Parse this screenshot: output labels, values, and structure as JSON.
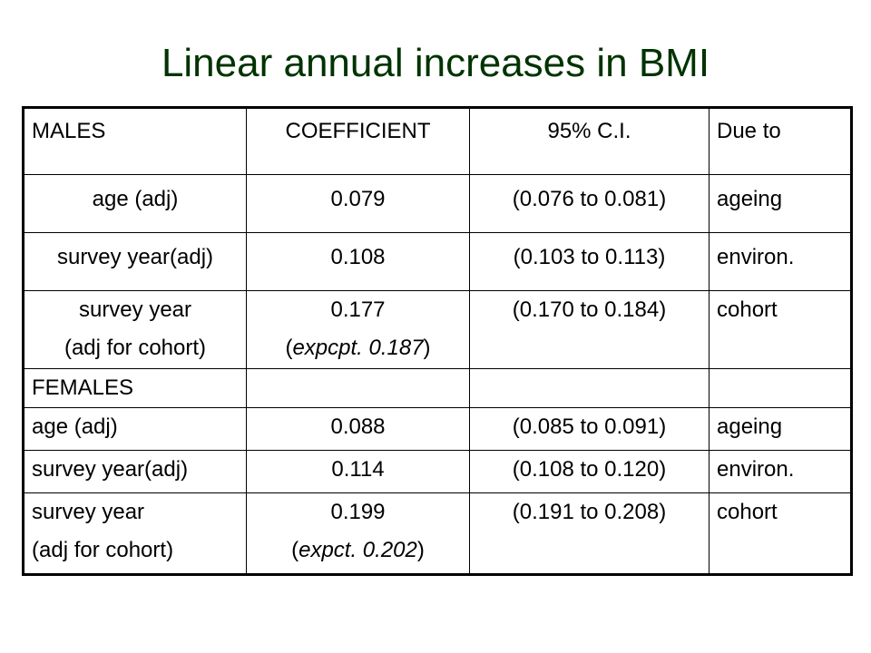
{
  "title": "Linear annual increases in BMI",
  "header": {
    "col1": "MALES",
    "col2": "COEFFICIENT",
    "col3": "95% C.I.",
    "col4": "Due to"
  },
  "males": [
    {
      "label": "age (adj)",
      "coef": "0.079",
      "ci": "(0.076 to 0.081)",
      "due": "ageing"
    },
    {
      "label": "survey year(adj)",
      "coef": "0.108",
      "ci": "(0.103 to 0.113)",
      "due": "environ."
    },
    {
      "label_line1": "survey year",
      "label_line2": "(adj for cohort)",
      "coef": "0.177",
      "expct_prefix": "(",
      "expct": "expcpt. 0.187",
      "expct_suffix": ")",
      "ci": "(0.170 to 0.184)",
      "due": "cohort"
    }
  ],
  "females_label": "FEMALES",
  "females": [
    {
      "label": "age (adj)",
      "coef": "0.088",
      "ci": "(0.085 to 0.091)",
      "due": "ageing"
    },
    {
      "label": "survey year(adj)",
      "coef": "0.114",
      "ci": "(0.108 to 0.120)",
      "due": "environ."
    },
    {
      "label_line1": "survey year",
      "label_line2": "(adj for cohort)",
      "coef": "0.199",
      "expct_prefix": "(",
      "expct": "expct. 0.202",
      "expct_suffix": ")",
      "ci": "(0.191 to 0.208)",
      "due": "cohort"
    }
  ],
  "colors": {
    "title": "#003300",
    "text": "#000000",
    "background": "#ffffff"
  }
}
